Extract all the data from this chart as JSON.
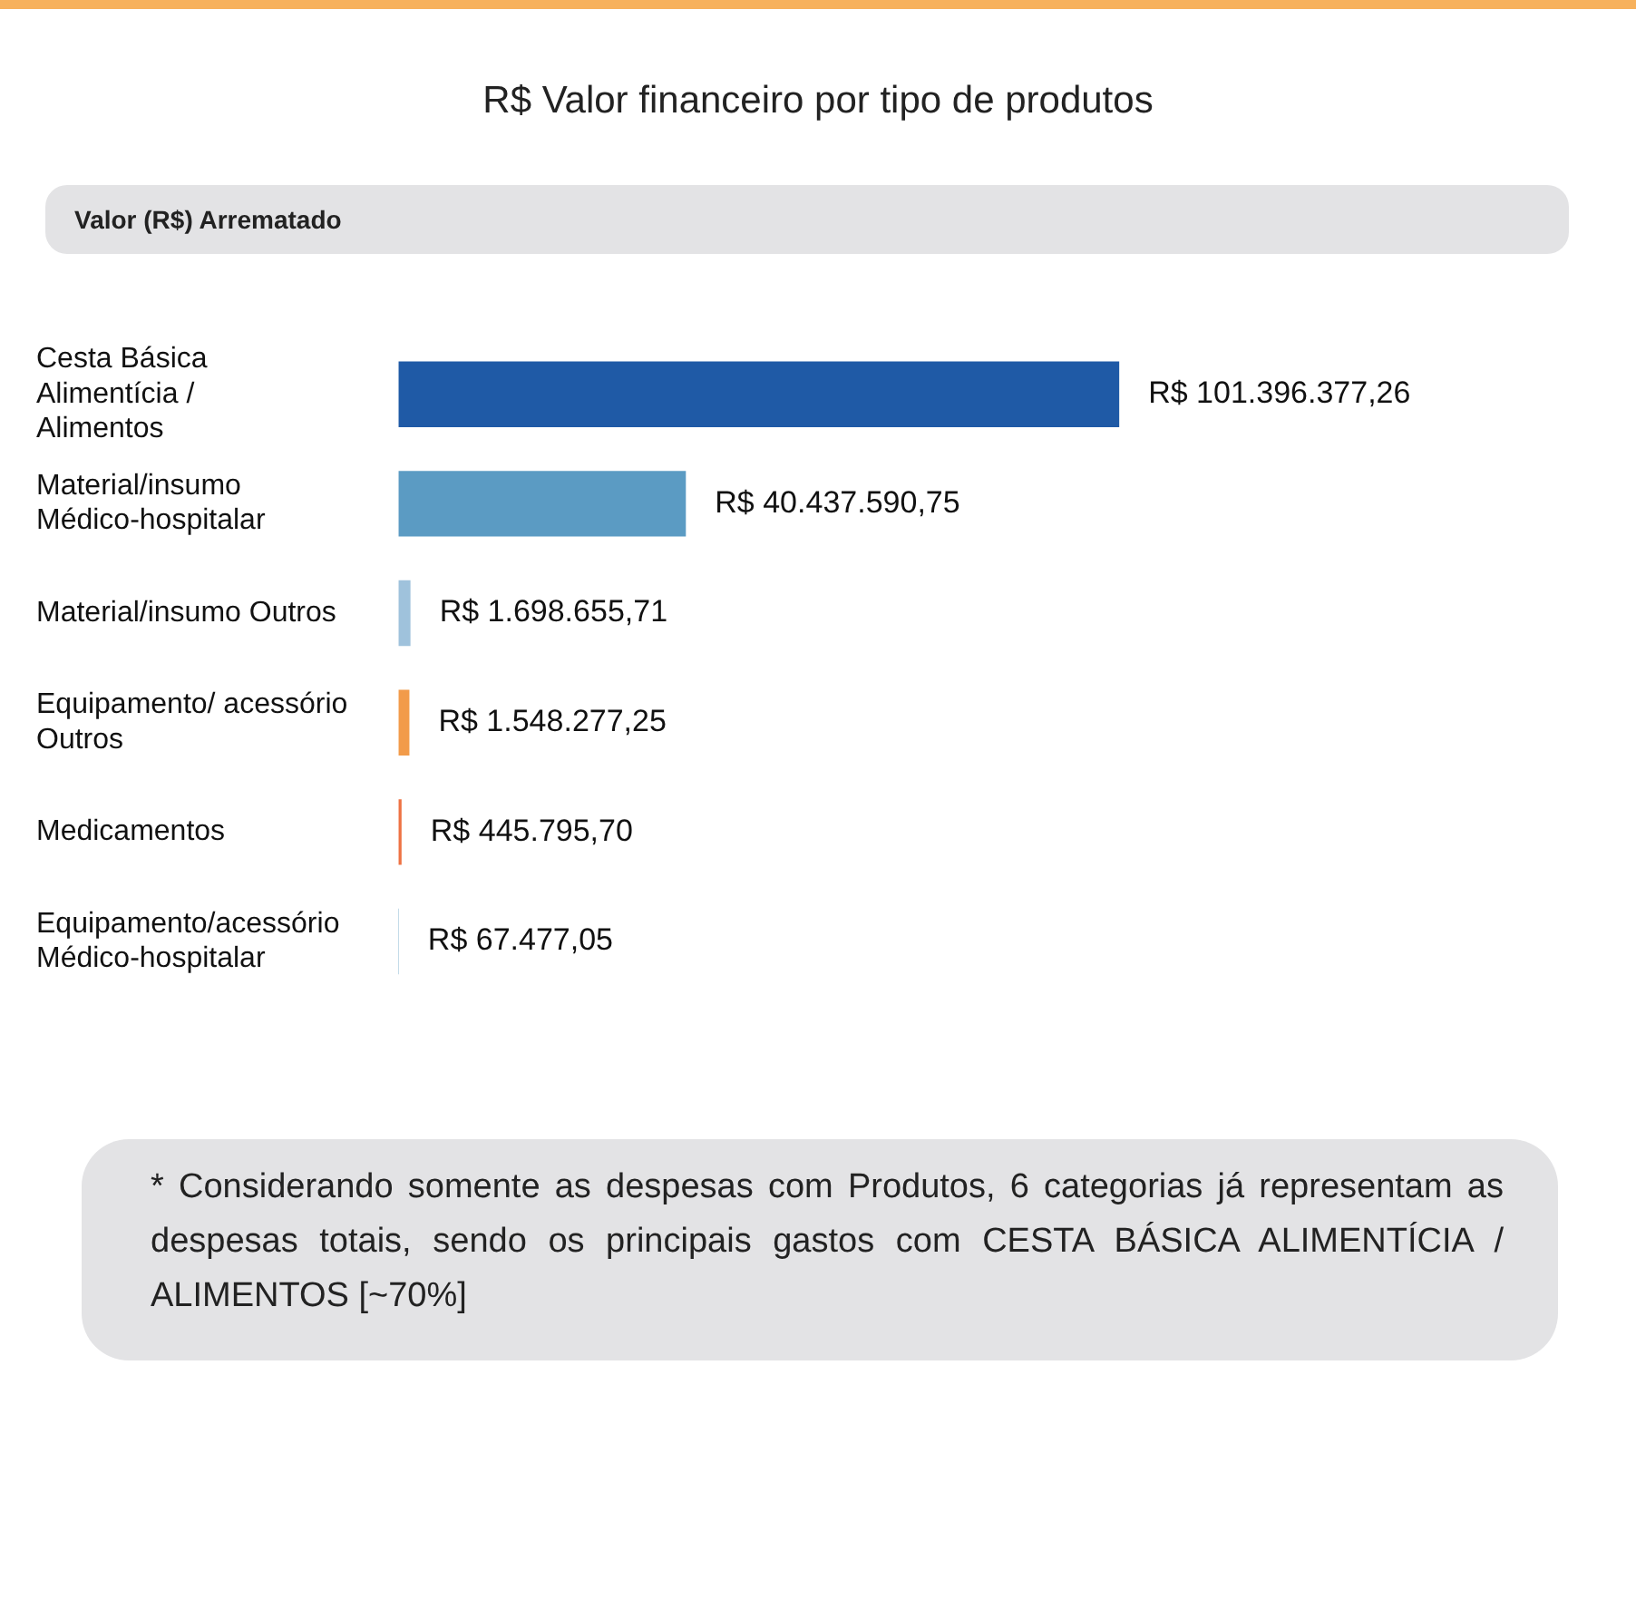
{
  "chart_data": {
    "type": "bar",
    "orientation": "horizontal",
    "title": "R$ Valor financeiro por tipo de produtos",
    "subtitle": "Valor (R$) Arrematado",
    "categories": [
      "Cesta Básica Alimentícia / Alimentos",
      "Material/insumo Médico-hospitalar",
      "Material/insumo Outros",
      "Equipamento/ acessório Outros",
      "Medicamentos",
      "Equipamento/acessório Médico-hospitalar"
    ],
    "values": [
      101396377.26,
      40437590.75,
      1698655.71,
      1548277.25,
      445795.7,
      67477.05
    ],
    "colors": [
      "#1f5aa6",
      "#5b9bc3",
      "#9fc2dc",
      "#f29b4a",
      "#ee7243",
      "#5b9bc3"
    ],
    "value_labels": [
      "R$ 101.396.377,26",
      "R$ 40.437.590,75",
      "R$ 1.698.655,71",
      "R$ 1.548.277,25",
      "R$ 445.795,70",
      "R$ 67.477,05"
    ],
    "annotations": [
      "* Considerando somente as despesas com Produtos, 6 categorias já representam as despesas totais, sendo os principais gastos com CESTA BÁSICA ALIMENTÍCIA / ALIMENTOS [~70%]"
    ],
    "legend": false
  }
}
